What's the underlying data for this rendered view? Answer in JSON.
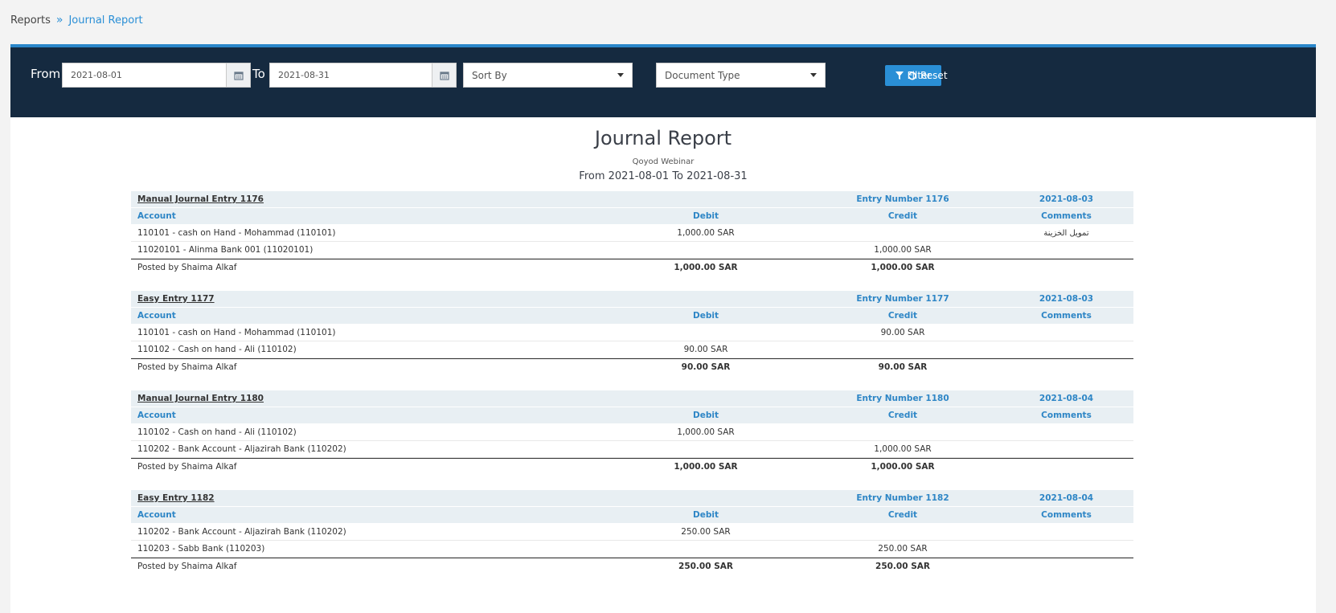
{
  "breadcrumb": {
    "root": "Reports",
    "separator": "»",
    "current": "Journal Report"
  },
  "filters": {
    "from_label": "From",
    "from_value": "2021-08-01",
    "to_label": "To",
    "to_value": "2021-08-31",
    "sort_placeholder": "Sort By",
    "doctype_placeholder": "Document Type",
    "filter_label": "Filter",
    "reset_label": "Reset"
  },
  "report": {
    "title": "Journal Report",
    "company": "Qoyod Webinar",
    "range": "From 2021-08-01 To 2021-08-31"
  },
  "columns": {
    "account": "Account",
    "debit": "Debit",
    "credit": "Credit",
    "comments": "Comments"
  },
  "entries": [
    {
      "title": "Manual Journal Entry 1176",
      "number": "Entry Number 1176",
      "date": "2021-08-03",
      "lines": [
        {
          "account": "110101 - cash on Hand - Mohammad (110101)",
          "debit": "1,000.00 SAR",
          "credit": "",
          "comment": "تمويل الخزينة"
        },
        {
          "account": "11020101 - Alinma Bank 001 (11020101)",
          "debit": "",
          "credit": "1,000.00 SAR",
          "comment": ""
        }
      ],
      "posted_by": "Posted by Shaima Alkaf",
      "total_debit": "1,000.00 SAR",
      "total_credit": "1,000.00 SAR"
    },
    {
      "title": "Easy Entry 1177",
      "number": "Entry Number 1177",
      "date": "2021-08-03",
      "lines": [
        {
          "account": "110101 - cash on Hand - Mohammad (110101)",
          "debit": "",
          "credit": "90.00 SAR",
          "comment": ""
        },
        {
          "account": "110102 - Cash on hand - Ali (110102)",
          "debit": "90.00 SAR",
          "credit": "",
          "comment": ""
        }
      ],
      "posted_by": "Posted by Shaima Alkaf",
      "total_debit": "90.00 SAR",
      "total_credit": "90.00 SAR"
    },
    {
      "title": "Manual Journal Entry 1180",
      "number": "Entry Number 1180",
      "date": "2021-08-04",
      "lines": [
        {
          "account": "110102 - Cash on hand - Ali (110102)",
          "debit": "1,000.00 SAR",
          "credit": "",
          "comment": ""
        },
        {
          "account": "110202 - Bank Account - Aljazirah Bank (110202)",
          "debit": "",
          "credit": "1,000.00 SAR",
          "comment": ""
        }
      ],
      "posted_by": "Posted by Shaima Alkaf",
      "total_debit": "1,000.00 SAR",
      "total_credit": "1,000.00 SAR"
    },
    {
      "title": "Easy Entry 1182",
      "number": "Entry Number 1182",
      "date": "2021-08-04",
      "lines": [
        {
          "account": "110202 - Bank Account - Aljazirah Bank (110202)",
          "debit": "250.00 SAR",
          "credit": "",
          "comment": ""
        },
        {
          "account": "110203 - Sabb Bank (110203)",
          "debit": "",
          "credit": "250.00 SAR",
          "comment": ""
        }
      ],
      "posted_by": "Posted by Shaima Alkaf",
      "total_debit": "250.00 SAR",
      "total_credit": "250.00 SAR"
    }
  ]
}
